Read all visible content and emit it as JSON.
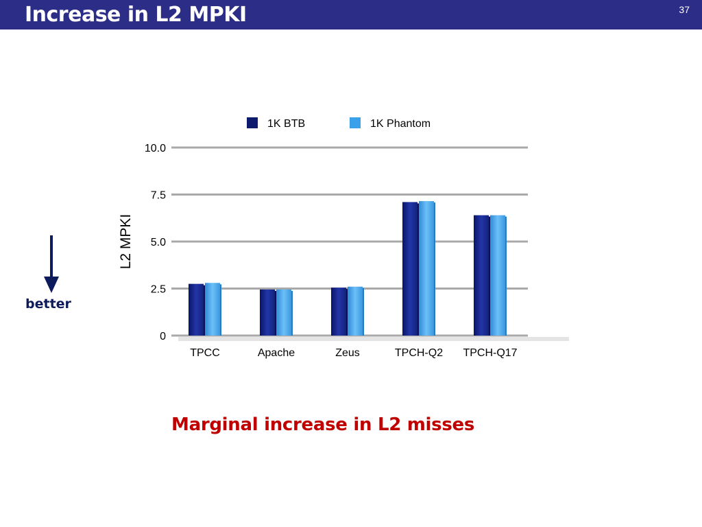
{
  "slide": {
    "title": "Increase in L2 MPKI",
    "number": "37",
    "better_label": "better",
    "caption": "Marginal increase in L2 misses"
  },
  "colors": {
    "title_bar": "#2b2d86",
    "caption": "#c00000",
    "series_1": "#1a2a8c",
    "series_2": "#4aa8ec",
    "arrow": "#0d1a5c"
  },
  "chart_data": {
    "type": "bar",
    "categories": [
      "TPCC",
      "Apache",
      "Zeus",
      "TPCH-Q2",
      "TPCH-Q17"
    ],
    "series": [
      {
        "name": "1K BTB",
        "values": [
          2.75,
          2.45,
          2.55,
          7.1,
          6.4
        ]
      },
      {
        "name": "1K Phantom",
        "values": [
          2.8,
          2.45,
          2.6,
          7.15,
          6.4
        ]
      }
    ],
    "ylabel": "L2 MPKI",
    "yticks": [
      "0",
      "2.5",
      "5.0",
      "7.5",
      "10.0"
    ],
    "ytick_values": [
      0,
      2.5,
      5,
      7.5,
      10
    ],
    "ylim": [
      0,
      10
    ],
    "grid": true,
    "legend_position": "top"
  }
}
